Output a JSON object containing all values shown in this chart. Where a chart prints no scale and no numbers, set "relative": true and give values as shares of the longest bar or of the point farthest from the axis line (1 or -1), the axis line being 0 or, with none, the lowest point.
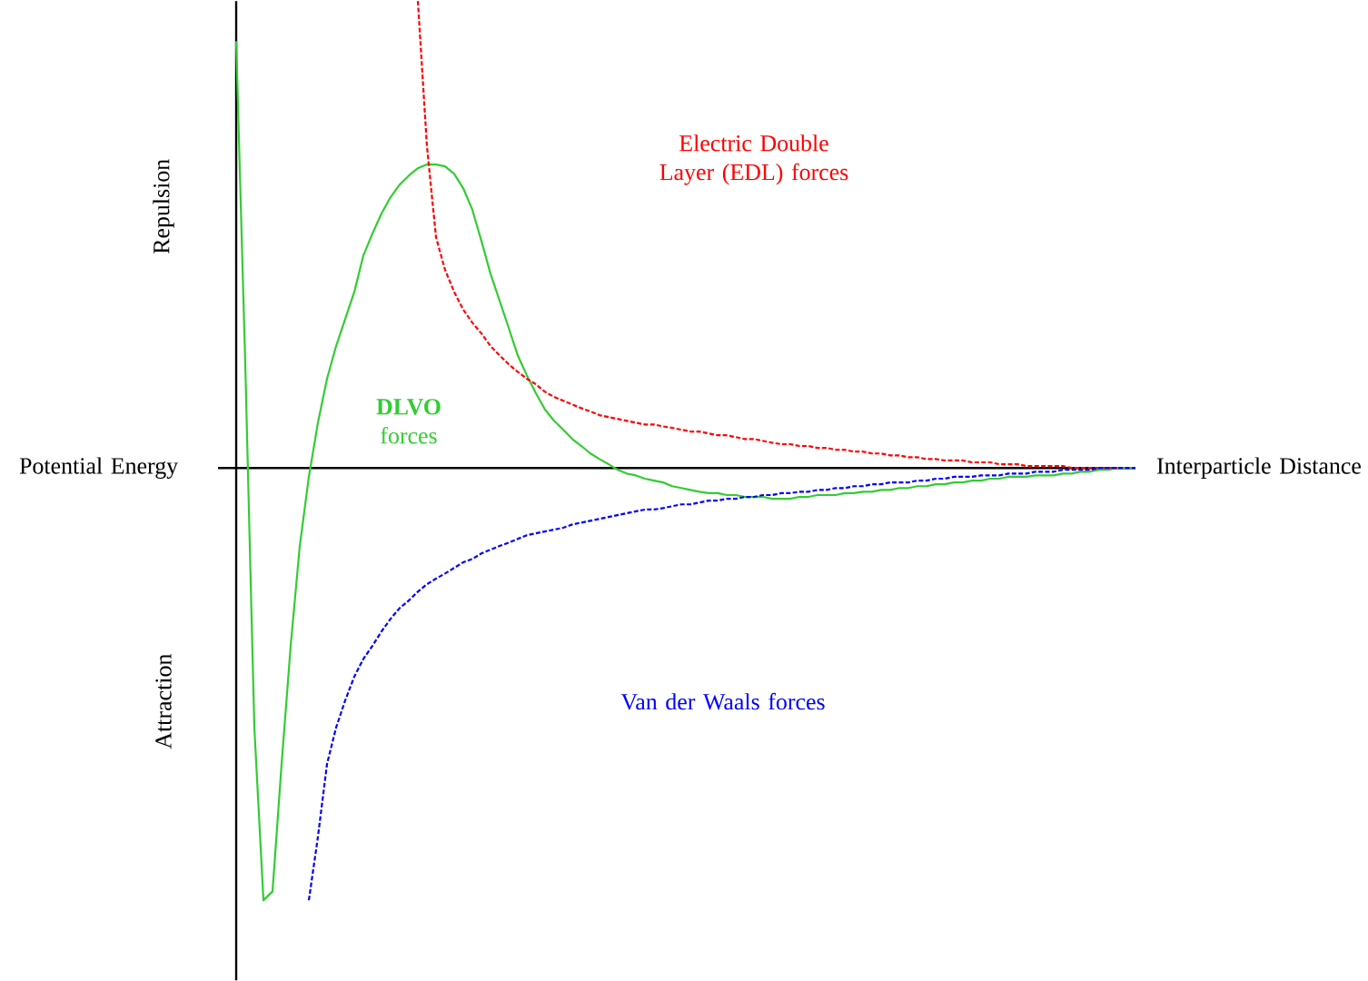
{
  "chart_data": {
    "type": "line",
    "relative": true,
    "xlabel": "Interparticle Distance",
    "ylabel": "Potential Energy",
    "annotations": [
      "Repulsion",
      "Attraction"
    ],
    "categories": [
      null,
      null,
      null,
      null,
      null,
      null,
      null,
      null,
      null,
      null,
      null,
      null,
      null,
      null,
      null,
      null,
      null,
      null,
      null,
      null,
      null,
      null,
      null,
      null,
      null,
      null,
      null,
      null,
      null,
      null,
      null,
      null,
      null,
      null,
      null,
      null,
      null,
      null,
      null,
      null,
      null,
      null,
      null,
      null,
      null,
      null,
      null,
      null,
      null,
      null,
      null,
      null,
      null,
      null,
      null,
      null,
      null,
      null,
      null,
      null,
      null,
      null,
      null,
      null,
      null,
      null,
      null,
      null,
      null,
      null,
      null,
      null,
      null,
      null,
      null,
      null,
      null,
      null,
      null,
      null,
      null,
      null,
      null,
      null,
      null,
      null,
      null,
      null,
      null,
      null,
      null,
      null,
      null,
      null,
      null,
      null,
      null,
      null,
      null,
      null
    ],
    "series": [
      {
        "name": "**DLVO** forces",
        "color": "#33cc33",
        "line_style": "solid",
        "values": [
          0.914,
          0.222,
          -0.556,
          -0.926,
          -0.907,
          -0.634,
          -0.381,
          -0.167,
          -0.019,
          0.097,
          0.191,
          0.261,
          0.319,
          0.377,
          0.455,
          0.502,
          0.545,
          0.58,
          0.607,
          0.626,
          0.642,
          0.65,
          0.65,
          0.646,
          0.63,
          0.599,
          0.553,
          0.486,
          0.416,
          0.358,
          0.3,
          0.241,
          0.198,
          0.16,
          0.125,
          0.101,
          0.082,
          0.062,
          0.047,
          0.031,
          0.019,
          0.008,
          -0.004,
          -0.012,
          -0.016,
          -0.023,
          -0.027,
          -0.031,
          -0.039,
          -0.043,
          -0.047,
          -0.051,
          -0.054,
          -0.054,
          -0.058,
          -0.058,
          -0.062,
          -0.062,
          -0.062,
          -0.066,
          -0.066,
          -0.066,
          -0.062,
          -0.062,
          -0.058,
          -0.058,
          -0.058,
          -0.054,
          -0.054,
          -0.051,
          -0.051,
          -0.047,
          -0.047,
          -0.043,
          -0.043,
          -0.039,
          -0.039,
          -0.035,
          -0.035,
          -0.031,
          -0.031,
          -0.027,
          -0.027,
          -0.023,
          -0.023,
          -0.019,
          -0.019,
          -0.019,
          -0.016,
          -0.016,
          -0.016,
          -0.012,
          -0.012,
          -0.008,
          -0.008,
          -0.004,
          -0.004,
          0,
          0,
          0
        ]
      },
      {
        "name": "Electric Double Layer (EDL) forces",
        "color": "#ff0000",
        "line_style": "dashed",
        "values": [
          null,
          null,
          null,
          null,
          null,
          null,
          null,
          null,
          null,
          null,
          null,
          null,
          null,
          null,
          null,
          null,
          null,
          null,
          null,
          null,
          1,
          0.689,
          0.494,
          0.424,
          0.377,
          0.339,
          0.311,
          0.288,
          0.261,
          0.241,
          0.222,
          0.206,
          0.191,
          0.179,
          0.163,
          0.152,
          0.144,
          0.136,
          0.128,
          0.121,
          0.113,
          0.109,
          0.105,
          0.101,
          0.097,
          0.093,
          0.093,
          0.089,
          0.086,
          0.082,
          0.078,
          0.078,
          0.074,
          0.07,
          0.07,
          0.066,
          0.062,
          0.062,
          0.058,
          0.054,
          0.051,
          0.051,
          0.047,
          0.047,
          0.043,
          0.043,
          0.039,
          0.039,
          0.035,
          0.035,
          0.031,
          0.031,
          0.027,
          0.027,
          0.023,
          0.023,
          0.019,
          0.019,
          0.016,
          0.016,
          0.016,
          0.012,
          0.012,
          0.012,
          0.008,
          0.008,
          0.008,
          0.004,
          0.004,
          0.004,
          0.004,
          0.004,
          0,
          0,
          0,
          0,
          0,
          0,
          null,
          null
        ]
      },
      {
        "name": "Van der Waals forces",
        "color": "#0000ff",
        "line_style": "dashed",
        "values": [
          null,
          null,
          null,
          null,
          null,
          null,
          null,
          null,
          -0.926,
          -0.79,
          -0.634,
          -0.556,
          -0.498,
          -0.447,
          -0.409,
          -0.381,
          -0.35,
          -0.323,
          -0.3,
          -0.284,
          -0.265,
          -0.249,
          -0.237,
          -0.226,
          -0.214,
          -0.202,
          -0.195,
          -0.183,
          -0.175,
          -0.167,
          -0.16,
          -0.152,
          -0.144,
          -0.14,
          -0.136,
          -0.132,
          -0.128,
          -0.121,
          -0.117,
          -0.113,
          -0.109,
          -0.105,
          -0.101,
          -0.097,
          -0.093,
          -0.089,
          -0.089,
          -0.086,
          -0.082,
          -0.078,
          -0.078,
          -0.074,
          -0.07,
          -0.07,
          -0.066,
          -0.066,
          -0.062,
          -0.062,
          -0.058,
          -0.058,
          -0.054,
          -0.054,
          -0.051,
          -0.051,
          -0.047,
          -0.047,
          -0.043,
          -0.043,
          -0.039,
          -0.039,
          -0.035,
          -0.035,
          -0.031,
          -0.031,
          -0.031,
          -0.027,
          -0.027,
          -0.023,
          -0.023,
          -0.019,
          -0.019,
          -0.019,
          -0.016,
          -0.016,
          -0.016,
          -0.012,
          -0.012,
          -0.012,
          -0.008,
          -0.008,
          -0.008,
          -0.004,
          -0.004,
          -0.004,
          -0.004,
          0,
          0,
          0,
          0,
          0
        ]
      }
    ]
  }
}
